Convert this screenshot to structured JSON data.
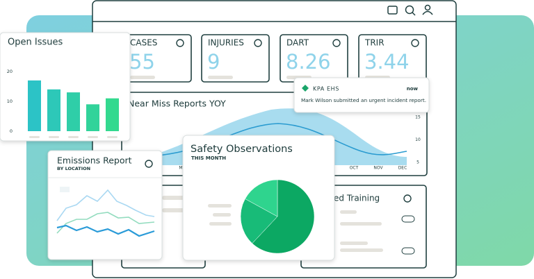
{
  "kpis": [
    {
      "label": "CASES",
      "value": 55
    },
    {
      "label": "INJURIES",
      "value": 9
    },
    {
      "label": "DART",
      "value": 8.26
    },
    {
      "label": "TRIR",
      "value": 3.44
    }
  ],
  "open_issues": {
    "title": "Open Issues",
    "ylim": [
      0,
      20
    ],
    "yticks": [
      0,
      10,
      20
    ],
    "values": [
      17,
      14,
      13,
      9,
      11
    ],
    "colors": [
      "#2cc3c6",
      "#2dc8b8",
      "#2fcea8",
      "#31d39a",
      "#33d98f"
    ]
  },
  "near_miss": {
    "title": "Near Miss Reports YOY",
    "months": [
      "MA",
      "OCT",
      "NOV",
      "DEC"
    ],
    "yticks": [
      15,
      10,
      5
    ]
  },
  "notification": {
    "brand": "KPA EHS",
    "time": "now",
    "message": "Mark Wilson submitted an urgent incident report."
  },
  "emissions": {
    "title": "Emissions Report",
    "subtitle": "BY LOCATION"
  },
  "safety": {
    "title": "Safety Observations",
    "subtitle": "THIS MONTH",
    "values": [
      62,
      21,
      17
    ],
    "colors": [
      "#0ca863",
      "#18bb78",
      "#2fd48e"
    ]
  },
  "training": {
    "title": "ed Training"
  }
}
